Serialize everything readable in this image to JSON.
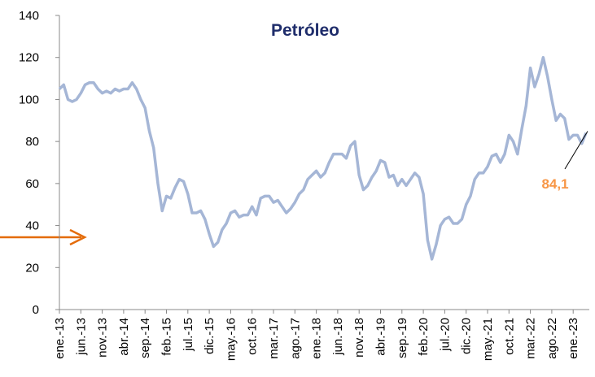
{
  "chart_data": {
    "type": "line",
    "title": "Petróleo",
    "categories": [
      "ene.-13",
      null,
      null,
      null,
      null,
      "jun.-13",
      null,
      null,
      null,
      null,
      "nov.-13",
      null,
      null,
      null,
      null,
      "abr.-14",
      null,
      null,
      null,
      null,
      "sep.-14",
      null,
      null,
      null,
      null,
      "feb.-15",
      null,
      null,
      null,
      null,
      "jul.-15",
      null,
      null,
      null,
      null,
      "dic.-15",
      null,
      null,
      null,
      null,
      "may.-16",
      null,
      null,
      null,
      null,
      "oct.-16",
      null,
      null,
      null,
      null,
      "mar.-17",
      null,
      null,
      null,
      null,
      "ago.-17",
      null,
      null,
      null,
      null,
      "ene.-18",
      null,
      null,
      null,
      null,
      "jun.-18",
      null,
      null,
      null,
      null,
      "nov.-18",
      null,
      null,
      null,
      null,
      "abr.-19",
      null,
      null,
      null,
      null,
      "sep.-19",
      null,
      null,
      null,
      null,
      "feb.-20",
      null,
      null,
      null,
      null,
      "jul.-20",
      null,
      null,
      null,
      null,
      "dic.-20",
      null,
      null,
      null,
      null,
      "may.-21",
      null,
      null,
      null,
      null,
      "oct.-21",
      null,
      null,
      null,
      null,
      "mar.-22",
      null,
      null,
      null,
      null,
      "ago.-22",
      null,
      null,
      null,
      null,
      "ene.-23",
      null,
      null,
      null
    ],
    "values": [
      105,
      107,
      100,
      99,
      100,
      103,
      107,
      108,
      108,
      105,
      103,
      104,
      103,
      105,
      104,
      105,
      105,
      108,
      105,
      100,
      96,
      85,
      77,
      60,
      47,
      54,
      53,
      58,
      62,
      61,
      55,
      46,
      46,
      47,
      43,
      36,
      30,
      32,
      38,
      41,
      46,
      47,
      44,
      45,
      45,
      49,
      45,
      53,
      54,
      54,
      51,
      52,
      49,
      46,
      48,
      51,
      55,
      57,
      62,
      64,
      66,
      63,
      65,
      70,
      74,
      74,
      74,
      72,
      78,
      80,
      64,
      57,
      59,
      63,
      66,
      71,
      70,
      63,
      64,
      59,
      62,
      59,
      62,
      65,
      63,
      55,
      33,
      24,
      31,
      40,
      43,
      44,
      41,
      41,
      43,
      50,
      54,
      62,
      65,
      65,
      68,
      73,
      74,
      70,
      74,
      83,
      80,
      74,
      86,
      97,
      115,
      106,
      112,
      120,
      111,
      100,
      90,
      93,
      91,
      81,
      83,
      83,
      79,
      84.1
    ],
    "value_labels": [
      null,
      null,
      null,
      null,
      null,
      null,
      null,
      null,
      null,
      null,
      null,
      null,
      null,
      null,
      null,
      null,
      null,
      null,
      null,
      null,
      null,
      null,
      null,
      null,
      null,
      null,
      null,
      null,
      null,
      null,
      null,
      null,
      null,
      null,
      null,
      null,
      null,
      null,
      null,
      null,
      null,
      null,
      null,
      null,
      null,
      null,
      null,
      null,
      null,
      null,
      null,
      null,
      null,
      null,
      null,
      null,
      null,
      null,
      null,
      null,
      null,
      null,
      null,
      null,
      null,
      null,
      null,
      null,
      null,
      null,
      null,
      null,
      null,
      null,
      null,
      null,
      null,
      null,
      null,
      null,
      null,
      null,
      null,
      null,
      null,
      null,
      null,
      null,
      null,
      null,
      null,
      null,
      null,
      null,
      null,
      null,
      null,
      null,
      null,
      null,
      null,
      null,
      null,
      null,
      null,
      null,
      null,
      null,
      null,
      null,
      null,
      null,
      null,
      null,
      null,
      null,
      null,
      null,
      null,
      null,
      null,
      null,
      null,
      "84,1"
    ],
    "color": "#a5b6d6",
    "label_color": "#f79646",
    "ylim": [
      0,
      140
    ],
    "yticks": [
      0,
      20,
      40,
      60,
      80,
      100,
      120,
      140
    ],
    "grid": false
  }
}
